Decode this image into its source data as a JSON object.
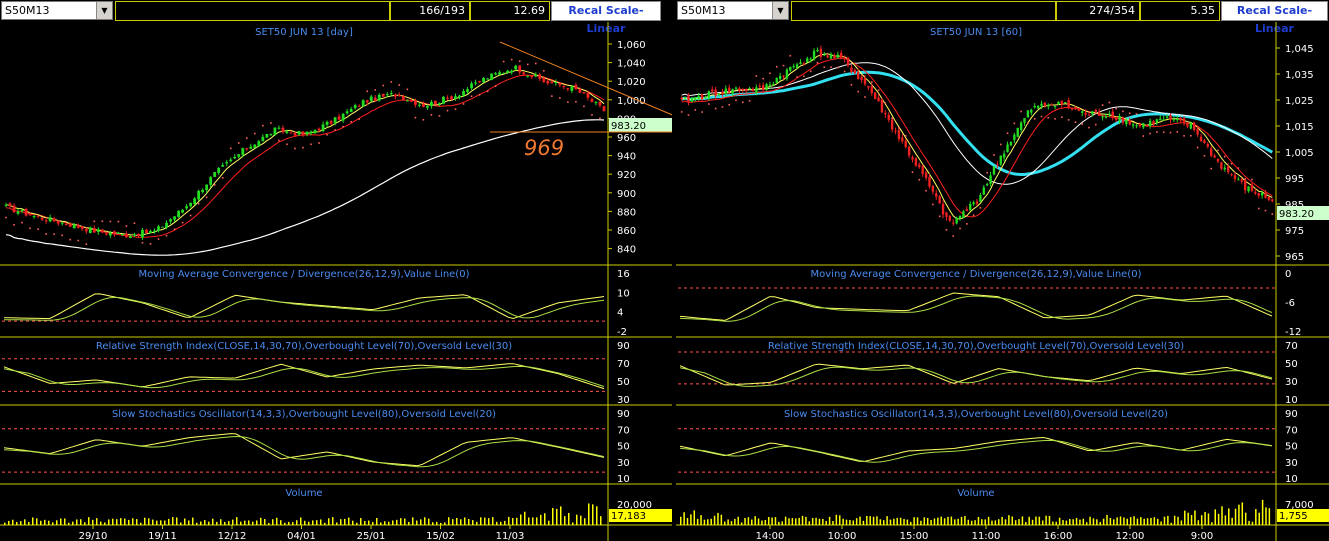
{
  "left": {
    "symbol": "S50M13",
    "count": "166/193",
    "value": "12.69",
    "recal": "Recal Scale-Linear",
    "title": "SET50 JUN 13   [day]",
    "price_ticks": [
      "1,060",
      "1,040",
      "1,020",
      "1,000",
      "980",
      "960",
      "940",
      "920",
      "900",
      "880",
      "860",
      "840"
    ],
    "last_price": "983.20",
    "annotation": "969",
    "macd_label": "Moving Average Convergence / Divergence(26,12,9),Value Line(0)",
    "macd_ticks": [
      "16",
      "10",
      "4",
      "-2"
    ],
    "rsi_label": "Relative Strength Index(CLOSE,14,30,70),Overbought Level(70),Oversold Level(30)",
    "rsi_ticks": [
      "90",
      "70",
      "50",
      "30"
    ],
    "stoch_label": "Slow Stochastics Oscillator(14,3,3),Overbought Level(80),Oversold Level(20)",
    "stoch_ticks": [
      "90",
      "70",
      "50",
      "30",
      "10"
    ],
    "volume_label": "Volume",
    "volume_tick": "20,000",
    "volume_last": "17,183",
    "date_ticks": [
      "29/10",
      "19/11",
      "12/12",
      "04/01",
      "25/01",
      "15/02",
      "11/03"
    ]
  },
  "right": {
    "symbol": "S50M13",
    "count": "274/354",
    "value": "5.35",
    "recal": "Recal Scale-Linear",
    "title": "SET50 JUN 13   [60]",
    "price_ticks": [
      "1,045",
      "1,035",
      "1,025",
      "1,015",
      "1,005",
      "995",
      "985",
      "975",
      "965"
    ],
    "last_price": "983.20",
    "macd_label": "Moving Average Convergence / Divergence(26,12,9),Value Line(0)",
    "macd_ticks": [
      "0",
      "-6",
      "-12"
    ],
    "rsi_label": "Relative Strength Index(CLOSE,14,30,70),Overbought Level(70),Oversold Level(30)",
    "rsi_ticks": [
      "70",
      "50",
      "30",
      "10"
    ],
    "stoch_label": "Slow Stochastics Oscillator(14,3,3),Overbought Level(80),Oversold Level(20)",
    "stoch_ticks": [
      "90",
      "70",
      "50",
      "30",
      "10"
    ],
    "volume_label": "Volume",
    "volume_tick": "7,000",
    "volume_last": "1,755",
    "date_ticks": [
      "14:00",
      "10:00",
      "15:00",
      "11:00",
      "16:00",
      "12:00",
      "9:00"
    ]
  },
  "colors": {
    "frame": "#cccc00",
    "label": "#4a8cf0",
    "grid_dash": "#ff5050",
    "ema_fast": "#ffff66",
    "ema_slow": "#ff2020",
    "sma_long": "#ffffff",
    "cyan_ma": "#33e0f0",
    "candle_up": "#22dd22",
    "candle_down": "#ee2020",
    "highlight": "#ccffcc"
  }
}
